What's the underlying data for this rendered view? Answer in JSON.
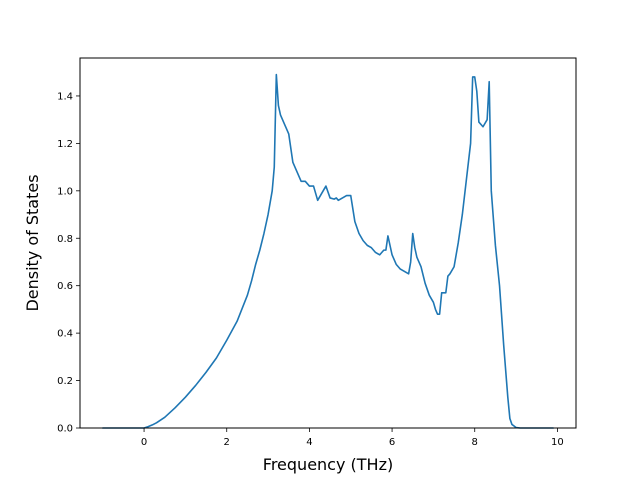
{
  "chart_data": {
    "type": "line",
    "title": "",
    "xlabel": "Frequency (THz)",
    "ylabel": "Density of States",
    "xlim": [
      -1.55,
      10.45
    ],
    "ylim": [
      0,
      1.56
    ],
    "xticks": [
      0,
      2,
      4,
      6,
      8,
      10
    ],
    "yticks": [
      0.0,
      0.2,
      0.4,
      0.6,
      0.8,
      1.0,
      1.2,
      1.4
    ],
    "xtick_labels": [
      "0",
      "2",
      "4",
      "6",
      "8",
      "10"
    ],
    "ytick_labels": [
      "0.0",
      "0.2",
      "0.4",
      "0.6",
      "0.8",
      "1.0",
      "1.2",
      "1.4"
    ],
    "grid": false,
    "legend": "none",
    "series": [
      {
        "color": "#1f77b4",
        "x": [
          -1.0,
          -0.5,
          0.0,
          0.1,
          0.2,
          0.3,
          0.5,
          0.75,
          1.0,
          1.25,
          1.5,
          1.75,
          2.0,
          2.25,
          2.5,
          2.6,
          2.7,
          2.8,
          2.9,
          3.0,
          3.1,
          3.15,
          3.2,
          3.25,
          3.3,
          3.4,
          3.5,
          3.6,
          3.7,
          3.8,
          3.9,
          4.0,
          4.1,
          4.2,
          4.3,
          4.4,
          4.5,
          4.6,
          4.65,
          4.7,
          4.8,
          4.9,
          5.0,
          5.1,
          5.2,
          5.3,
          5.4,
          5.5,
          5.6,
          5.7,
          5.8,
          5.85,
          5.9,
          6.0,
          6.1,
          6.2,
          6.3,
          6.4,
          6.45,
          6.5,
          6.55,
          6.6,
          6.7,
          6.8,
          6.9,
          7.0,
          7.05,
          7.1,
          7.15,
          7.2,
          7.3,
          7.35,
          7.4,
          7.5,
          7.6,
          7.7,
          7.8,
          7.9,
          7.95,
          8.0,
          8.05,
          8.1,
          8.2,
          8.3,
          8.35,
          8.4,
          8.5,
          8.6,
          8.7,
          8.8,
          8.85,
          8.9,
          9.0,
          9.1,
          9.5,
          9.9
        ],
        "y": [
          0.0,
          0.0,
          0.0,
          0.006,
          0.013,
          0.022,
          0.045,
          0.085,
          0.13,
          0.18,
          0.235,
          0.295,
          0.37,
          0.45,
          0.56,
          0.62,
          0.69,
          0.75,
          0.82,
          0.9,
          1.0,
          1.1,
          1.49,
          1.36,
          1.32,
          1.28,
          1.24,
          1.12,
          1.08,
          1.04,
          1.04,
          1.02,
          1.02,
          0.96,
          0.99,
          1.02,
          0.97,
          0.965,
          0.97,
          0.96,
          0.97,
          0.98,
          0.98,
          0.87,
          0.82,
          0.79,
          0.77,
          0.76,
          0.74,
          0.73,
          0.75,
          0.75,
          0.81,
          0.73,
          0.69,
          0.67,
          0.66,
          0.65,
          0.7,
          0.82,
          0.76,
          0.72,
          0.68,
          0.61,
          0.56,
          0.53,
          0.5,
          0.48,
          0.48,
          0.57,
          0.57,
          0.64,
          0.65,
          0.68,
          0.78,
          0.9,
          1.05,
          1.2,
          1.48,
          1.48,
          1.42,
          1.29,
          1.27,
          1.3,
          1.46,
          1.0,
          0.77,
          0.6,
          0.35,
          0.13,
          0.04,
          0.015,
          0.002,
          0.0,
          0.0,
          0.0
        ]
      }
    ]
  }
}
